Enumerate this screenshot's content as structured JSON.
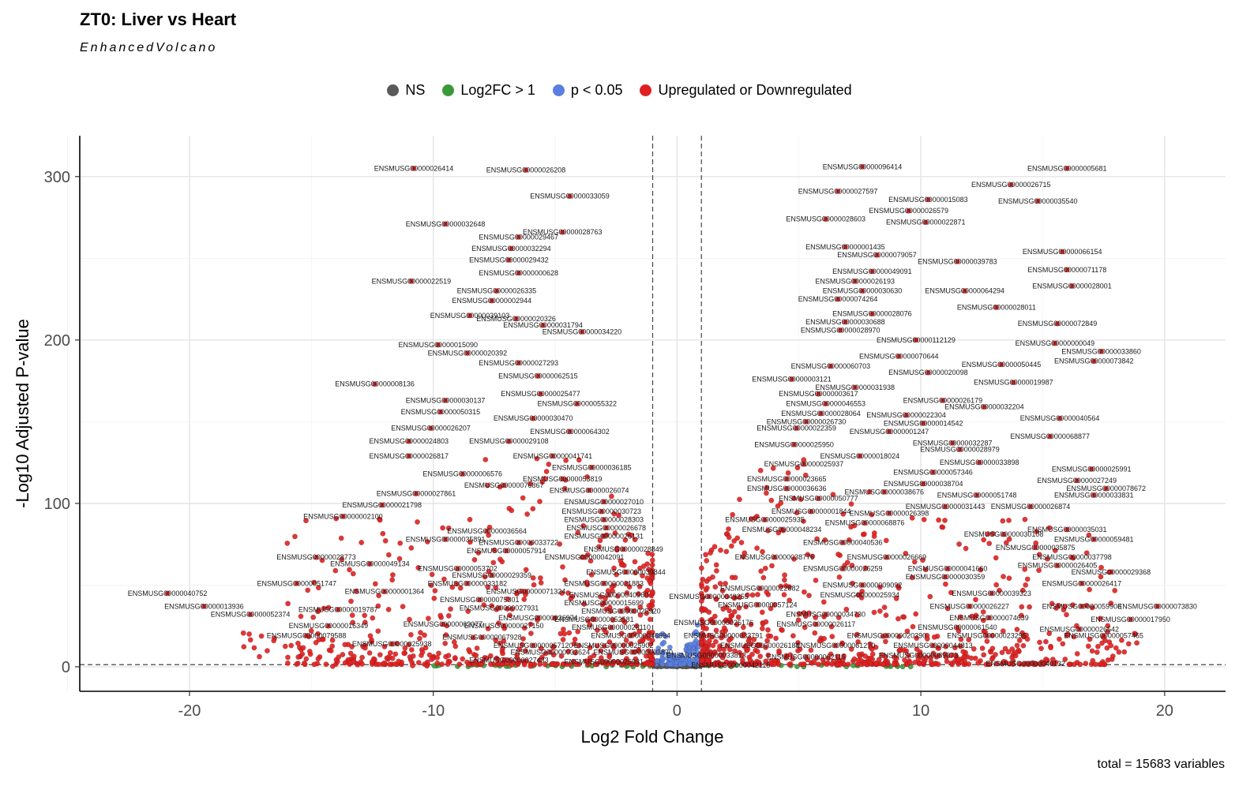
{
  "chart_data": {
    "type": "scatter",
    "title": "ZT0: Liver vs Heart",
    "subtitle": "EnhancedVolcano",
    "caption": "total = 15683 variables",
    "xlabel": "Log2 Fold Change",
    "ylabel": "-Log10 Adjusted P-value",
    "xlim": [
      -24.5,
      22.5
    ],
    "ylim": [
      -15,
      325
    ],
    "xticks": [
      -20,
      -10,
      0,
      10,
      20
    ],
    "yticks": [
      0,
      100,
      200,
      300
    ],
    "grid": true,
    "legend_position": "top",
    "cutoffs": {
      "log2fc": 1,
      "neg_log10_p": 1.3
    },
    "legend": [
      {
        "label": "NS",
        "color": "#5a5a5a"
      },
      {
        "label": "Log2FC > 1",
        "color": "#3a9a3a"
      },
      {
        "label": "p < 0.05",
        "color": "#5b7fe0"
      },
      {
        "label": "Upregulated or Downregulated",
        "color": "#e02020"
      }
    ],
    "labeled_points": [
      {
        "id": "ENSMUSG00000026414",
        "x": -10.8,
        "y": 305
      },
      {
        "id": "ENSMUSG00000026208",
        "x": -6.2,
        "y": 304
      },
      {
        "id": "ENSMUSG00000033059",
        "x": -4.4,
        "y": 288
      },
      {
        "id": "ENSMUSG00000032648",
        "x": -9.5,
        "y": 271
      },
      {
        "id": "ENSMUSG00000028763",
        "x": -4.7,
        "y": 266
      },
      {
        "id": "ENSMUSG00000029467",
        "x": -6.5,
        "y": 263
      },
      {
        "id": "ENSMUSG00000032294",
        "x": -6.8,
        "y": 256
      },
      {
        "id": "ENSMUSG00000029432",
        "x": -6.9,
        "y": 249
      },
      {
        "id": "ENSMUSG00000000628",
        "x": -6.5,
        "y": 241
      },
      {
        "id": "ENSMUSG00000022519",
        "x": -10.9,
        "y": 236
      },
      {
        "id": "ENSMUSG00000026335",
        "x": -7.4,
        "y": 230
      },
      {
        "id": "ENSMUSG00000002944",
        "x": -7.6,
        "y": 224
      },
      {
        "id": "ENSMUSG00000039103",
        "x": -8.5,
        "y": 215
      },
      {
        "id": "ENSMUSG00000020326",
        "x": -6.6,
        "y": 213
      },
      {
        "id": "ENSMUSG00000031794",
        "x": -5.5,
        "y": 209
      },
      {
        "id": "ENSMUSG00000034220",
        "x": -3.9,
        "y": 205
      },
      {
        "id": "ENSMUSG00000015090",
        "x": -9.8,
        "y": 197
      },
      {
        "id": "ENSMUSG00000020392",
        "x": -8.6,
        "y": 192
      },
      {
        "id": "ENSMUSG00000027293",
        "x": -6.5,
        "y": 186
      },
      {
        "id": "ENSMUSG00000062515",
        "x": -5.7,
        "y": 178
      },
      {
        "id": "ENSMUSG00000008136",
        "x": -12.4,
        "y": 173
      },
      {
        "id": "ENSMUSG00000025477",
        "x": -5.6,
        "y": 167
      },
      {
        "id": "ENSMUSG00000030137",
        "x": -9.5,
        "y": 163
      },
      {
        "id": "ENSMUSG00000055322",
        "x": -4.1,
        "y": 161
      },
      {
        "id": "ENSMUSG00000050315",
        "x": -9.7,
        "y": 156
      },
      {
        "id": "ENSMUSG00000030470",
        "x": -5.9,
        "y": 152
      },
      {
        "id": "ENSMUSG00000026207",
        "x": -10.1,
        "y": 146
      },
      {
        "id": "ENSMUSG00000064302",
        "x": -4.4,
        "y": 144
      },
      {
        "id": "ENSMUSG00000024803",
        "x": -11.0,
        "y": 138
      },
      {
        "id": "ENSMUSG00000029108",
        "x": -6.9,
        "y": 138
      },
      {
        "id": "ENSMUSG00000026817",
        "x": -11.0,
        "y": 129
      },
      {
        "id": "ENSMUSG00000041741",
        "x": -5.1,
        "y": 129
      },
      {
        "id": "ENSMUSG00000036185",
        "x": -3.5,
        "y": 122
      },
      {
        "id": "ENSMUSG00000006576",
        "x": -8.8,
        "y": 118
      },
      {
        "id": "ENSMUSG00000053819",
        "x": -4.7,
        "y": 115
      },
      {
        "id": "ENSMUSG00000076867",
        "x": -7.1,
        "y": 111
      },
      {
        "id": "ENSMUSG00000026074",
        "x": -3.6,
        "y": 108
      },
      {
        "id": "ENSMUSG00000027861",
        "x": -10.7,
        "y": 106
      },
      {
        "id": "ENSMUSG00000027010",
        "x": -3.0,
        "y": 101
      },
      {
        "id": "ENSMUSG00000021798",
        "x": -12.1,
        "y": 99
      },
      {
        "id": "ENSMUSG00000030723",
        "x": -3.1,
        "y": 95
      },
      {
        "id": "ENSMUSG00000028303",
        "x": -3.0,
        "y": 90
      },
      {
        "id": "ENSMUSG00000002100",
        "x": -13.7,
        "y": 92
      },
      {
        "id": "ENSMUSG00000036564",
        "x": -7.8,
        "y": 83
      },
      {
        "id": "ENSMUSG00000026678",
        "x": -2.9,
        "y": 85
      },
      {
        "id": "ENSMUSG00000026131",
        "x": -3.0,
        "y": 80
      },
      {
        "id": "ENSMUSG00000035891",
        "x": -9.5,
        "y": 78
      },
      {
        "id": "ENSMUSG00000033722",
        "x": -6.5,
        "y": 76
      },
      {
        "id": "ENSMUSG00000028849",
        "x": -2.2,
        "y": 72
      },
      {
        "id": "ENSMUSG00000057914",
        "x": -7.0,
        "y": 71
      },
      {
        "id": "ENSMUSG00000028773",
        "x": -14.8,
        "y": 67
      },
      {
        "id": "ENSMUSG00000042091",
        "x": -3.8,
        "y": 67
      },
      {
        "id": "ENSMUSG00000049134",
        "x": -12.6,
        "y": 63
      },
      {
        "id": "ENSMUSG00000053702",
        "x": -9.0,
        "y": 60
      },
      {
        "id": "ENSMUSG00000039844",
        "x": -2.1,
        "y": 58
      },
      {
        "id": "ENSMUSG00000029359",
        "x": -7.6,
        "y": 56
      },
      {
        "id": "ENSMUSG00000051747",
        "x": -15.6,
        "y": 51
      },
      {
        "id": "ENSMUSG00000033182",
        "x": -8.6,
        "y": 51
      },
      {
        "id": "ENSMUSG00000021883",
        "x": -3.0,
        "y": 51
      },
      {
        "id": "ENSMUSG00000001364",
        "x": -12.0,
        "y": 46
      },
      {
        "id": "ENSMUSG00000071324",
        "x": -6.2,
        "y": 46
      },
      {
        "id": "ENSMUSG00000040960",
        "x": -2.8,
        "y": 44
      },
      {
        "id": "ENSMUSG00000040752",
        "x": -20.9,
        "y": 45
      },
      {
        "id": "ENSMUSG00000075301",
        "x": -8.1,
        "y": 41
      },
      {
        "id": "ENSMUSG00000015699",
        "x": -3.0,
        "y": 39
      },
      {
        "id": "ENSMUSG00000013936",
        "x": -19.4,
        "y": 37
      },
      {
        "id": "ENSMUSG00000027931",
        "x": -7.3,
        "y": 36
      },
      {
        "id": "ENSMUSG00000025920",
        "x": -2.3,
        "y": 34
      },
      {
        "id": "ENSMUSG00000019787",
        "x": -13.9,
        "y": 35
      },
      {
        "id": "ENSMUSG00000052374",
        "x": -17.5,
        "y": 32
      },
      {
        "id": "ENSMUSG00000026974",
        "x": -5.7,
        "y": 30
      },
      {
        "id": "ENSMUSG00000052581",
        "x": -3.4,
        "y": 29
      },
      {
        "id": "ENSMUSG00000062077",
        "x": -9.6,
        "y": 26
      },
      {
        "id": "ENSMUSG00000016349",
        "x": -14.3,
        "y": 25
      },
      {
        "id": "ENSMUSG00000027150",
        "x": -7.1,
        "y": 25
      },
      {
        "id": "ENSMUSG00000026110",
        "x": -2.7,
        "y": 24
      },
      {
        "id": "ENSMUSG00000079588",
        "x": -15.2,
        "y": 19
      },
      {
        "id": "ENSMUSG00000067928",
        "x": -8.0,
        "y": 18
      },
      {
        "id": "ENSMUSG00000046994",
        "x": -1.9,
        "y": 19
      },
      {
        "id": "ENSMUSG00000025938",
        "x": -11.7,
        "y": 14
      },
      {
        "id": "ENSMUSG00000057120",
        "x": -5.9,
        "y": 13
      },
      {
        "id": "ENSMUSG00000025902",
        "x": -2.6,
        "y": 13
      },
      {
        "id": "ENSMUSG00000032624",
        "x": -5.2,
        "y": 9
      },
      {
        "id": "ENSMUSG00000003870",
        "x": -1.8,
        "y": 9
      },
      {
        "id": "ENSMUSG00000027433",
        "x": -6.9,
        "y": 4
      },
      {
        "id": "ENSMUSG00000025931",
        "x": -3.0,
        "y": 3
      },
      {
        "id": "ENSMUSG00000096414",
        "x": 7.6,
        "y": 306
      },
      {
        "id": "ENSMUSG00000005681",
        "x": 16.0,
        "y": 305
      },
      {
        "id": "ENSMUSG00000026715",
        "x": 13.7,
        "y": 295
      },
      {
        "id": "ENSMUSG00000027597",
        "x": 6.6,
        "y": 291
      },
      {
        "id": "ENSMUSG00000015083",
        "x": 10.3,
        "y": 286
      },
      {
        "id": "ENSMUSG00000035540",
        "x": 14.8,
        "y": 285
      },
      {
        "id": "ENSMUSG00000026579",
        "x": 9.5,
        "y": 279
      },
      {
        "id": "ENSMUSG00000028603",
        "x": 6.1,
        "y": 274
      },
      {
        "id": "ENSMUSG00000022871",
        "x": 10.2,
        "y": 272
      },
      {
        "id": "ENSMUSG00000001435",
        "x": 6.9,
        "y": 257
      },
      {
        "id": "ENSMUSG00000079057",
        "x": 8.2,
        "y": 252
      },
      {
        "id": "ENSMUSG00000066154",
        "x": 15.8,
        "y": 254
      },
      {
        "id": "ENSMUSG00000039783",
        "x": 11.5,
        "y": 248
      },
      {
        "id": "ENSMUSG00000071178",
        "x": 16.0,
        "y": 243
      },
      {
        "id": "ENSMUSG00000049091",
        "x": 8.0,
        "y": 242
      },
      {
        "id": "ENSMUSG00000026193",
        "x": 7.3,
        "y": 236
      },
      {
        "id": "ENSMUSG00000028001",
        "x": 16.2,
        "y": 233
      },
      {
        "id": "ENSMUSG00000030630",
        "x": 7.6,
        "y": 230
      },
      {
        "id": "ENSMUSG00000064294",
        "x": 11.8,
        "y": 230
      },
      {
        "id": "ENSMUSG00000074264",
        "x": 6.6,
        "y": 225
      },
      {
        "id": "ENSMUSG00000028011",
        "x": 13.1,
        "y": 220
      },
      {
        "id": "ENSMUSG00000028076",
        "x": 8.0,
        "y": 216
      },
      {
        "id": "ENSMUSG00000030688",
        "x": 6.9,
        "y": 211
      },
      {
        "id": "ENSMUSG00000072849",
        "x": 15.6,
        "y": 210
      },
      {
        "id": "ENSMUSG00000028970",
        "x": 6.7,
        "y": 206
      },
      {
        "id": "ENSMUSG00000112129",
        "x": 9.8,
        "y": 200
      },
      {
        "id": "ENSMUSG00000000049",
        "x": 15.5,
        "y": 198
      },
      {
        "id": "ENSMUSG00000033860",
        "x": 17.4,
        "y": 193
      },
      {
        "id": "ENSMUSG00000070644",
        "x": 9.1,
        "y": 190
      },
      {
        "id": "ENSMUSG00000073842",
        "x": 17.1,
        "y": 187
      },
      {
        "id": "ENSMUSG00000050445",
        "x": 13.3,
        "y": 185
      },
      {
        "id": "ENSMUSG00000060703",
        "x": 6.3,
        "y": 184
      },
      {
        "id": "ENSMUSG00000020098",
        "x": 10.3,
        "y": 180
      },
      {
        "id": "ENSMUSG00000003121",
        "x": 4.7,
        "y": 176
      },
      {
        "id": "ENSMUSG00000019987",
        "x": 13.8,
        "y": 174
      },
      {
        "id": "ENSMUSG00000031938",
        "x": 7.3,
        "y": 171
      },
      {
        "id": "ENSMUSG00000003617",
        "x": 5.8,
        "y": 167
      },
      {
        "id": "ENSMUSG00000026179",
        "x": 10.9,
        "y": 163
      },
      {
        "id": "ENSMUSG00000046553",
        "x": 6.1,
        "y": 161
      },
      {
        "id": "ENSMUSG00000032204",
        "x": 12.6,
        "y": 159
      },
      {
        "id": "ENSMUSG00000028064",
        "x": 5.9,
        "y": 155
      },
      {
        "id": "ENSMUSG00000022304",
        "x": 9.4,
        "y": 154
      },
      {
        "id": "ENSMUSG00000040564",
        "x": 15.7,
        "y": 152
      },
      {
        "id": "ENSMUSG00000026730",
        "x": 5.3,
        "y": 150
      },
      {
        "id": "ENSMUSG00000014542",
        "x": 10.1,
        "y": 149
      },
      {
        "id": "ENSMUSG00000022359",
        "x": 4.9,
        "y": 146
      },
      {
        "id": "ENSMUSG00000001247",
        "x": 8.7,
        "y": 144
      },
      {
        "id": "ENSMUSG00000068877",
        "x": 15.3,
        "y": 141
      },
      {
        "id": "ENSMUSG00000032287",
        "x": 11.3,
        "y": 137
      },
      {
        "id": "ENSMUSG00000025950",
        "x": 4.8,
        "y": 136
      },
      {
        "id": "ENSMUSG00000028979",
        "x": 11.6,
        "y": 133
      },
      {
        "id": "ENSMUSG00000018024",
        "x": 7.5,
        "y": 129
      },
      {
        "id": "ENSMUSG00000033898",
        "x": 12.4,
        "y": 125
      },
      {
        "id": "ENSMUSG00000025937",
        "x": 5.2,
        "y": 124
      },
      {
        "id": "ENSMUSG00000025991",
        "x": 17.0,
        "y": 121
      },
      {
        "id": "ENSMUSG00000057346",
        "x": 10.5,
        "y": 119
      },
      {
        "id": "ENSMUSG00000023665",
        "x": 4.5,
        "y": 115
      },
      {
        "id": "ENSMUSG00000027249",
        "x": 16.4,
        "y": 114
      },
      {
        "id": "ENSMUSG00000038704",
        "x": 10.1,
        "y": 112
      },
      {
        "id": "ENSMUSG00000078672",
        "x": 17.6,
        "y": 109
      },
      {
        "id": "ENSMUSG00000036636",
        "x": 4.5,
        "y": 109
      },
      {
        "id": "ENSMUSG00000038676",
        "x": 8.5,
        "y": 107
      },
      {
        "id": "ENSMUSG00000051748",
        "x": 12.3,
        "y": 105
      },
      {
        "id": "ENSMUSG00000033831",
        "x": 17.1,
        "y": 105
      },
      {
        "id": "ENSMUSG00000050777",
        "x": 5.8,
        "y": 103
      },
      {
        "id": "ENSMUSG00000031443",
        "x": 11.0,
        "y": 98
      },
      {
        "id": "ENSMUSG00000026874",
        "x": 14.5,
        "y": 98
      },
      {
        "id": "ENSMUSG00000001844",
        "x": 5.5,
        "y": 95
      },
      {
        "id": "ENSMUSG00000026398",
        "x": 8.7,
        "y": 94
      },
      {
        "id": "ENSMUSG00000025935",
        "x": 3.6,
        "y": 90
      },
      {
        "id": "ENSMUSG00000068876",
        "x": 7.7,
        "y": 88
      },
      {
        "id": "ENSMUSG00000035031",
        "x": 16.0,
        "y": 84
      },
      {
        "id": "ENSMUSG00000048234",
        "x": 4.3,
        "y": 84
      },
      {
        "id": "ENSMUSG00000030108",
        "x": 13.4,
        "y": 81
      },
      {
        "id": "ENSMUSG00000059481",
        "x": 17.1,
        "y": 78
      },
      {
        "id": "ENSMUSG00000040536",
        "x": 6.8,
        "y": 76
      },
      {
        "id": "ENSMUSG00000035875",
        "x": 14.7,
        "y": 73
      },
      {
        "id": "ENSMUSG00000038776",
        "x": 4.0,
        "y": 67
      },
      {
        "id": "ENSMUSG00000026669",
        "x": 8.6,
        "y": 67
      },
      {
        "id": "ENSMUSG00000037798",
        "x": 16.2,
        "y": 67
      },
      {
        "id": "ENSMUSG00000026405",
        "x": 15.6,
        "y": 62
      },
      {
        "id": "ENSMUSG00000026259",
        "x": 6.8,
        "y": 60
      },
      {
        "id": "ENSMUSG00000041660",
        "x": 11.1,
        "y": 60
      },
      {
        "id": "ENSMUSG00000029368",
        "x": 17.8,
        "y": 58
      },
      {
        "id": "ENSMUSG00000030359",
        "x": 11.0,
        "y": 55
      },
      {
        "id": "ENSMUSG00000026417",
        "x": 16.6,
        "y": 51
      },
      {
        "id": "ENSMUSG00000009092",
        "x": 7.6,
        "y": 50
      },
      {
        "id": "ENSMUSG00000022882",
        "x": 3.4,
        "y": 48
      },
      {
        "id": "ENSMUSG00000039323",
        "x": 12.9,
        "y": 45
      },
      {
        "id": "ENSMUSG00000025934",
        "x": 7.5,
        "y": 44
      },
      {
        "id": "ENSMUSG00000049255",
        "x": 1.3,
        "y": 43
      },
      {
        "id": "ENSMUSG00000057124",
        "x": 3.3,
        "y": 38
      },
      {
        "id": "ENSMUSG00000026227",
        "x": 12.0,
        "y": 37
      },
      {
        "id": "ENSMUSG00000059908",
        "x": 16.6,
        "y": 37
      },
      {
        "id": "ENSMUSG00000073830",
        "x": 19.7,
        "y": 37
      },
      {
        "id": "ENSMUSG00000034730",
        "x": 6.1,
        "y": 32
      },
      {
        "id": "ENSMUSG00000074639",
        "x": 12.8,
        "y": 30
      },
      {
        "id": "ENSMUSG00000017950",
        "x": 18.6,
        "y": 29
      },
      {
        "id": "ENSMUSG00000025176",
        "x": 1.5,
        "y": 27
      },
      {
        "id": "ENSMUSG00000026117",
        "x": 5.7,
        "y": 26
      },
      {
        "id": "ENSMUSG00000061540",
        "x": 11.5,
        "y": 24
      },
      {
        "id": "ENSMUSG00000026542",
        "x": 16.5,
        "y": 23
      },
      {
        "id": "ENSMUSG00000033791",
        "x": 1.9,
        "y": 19
      },
      {
        "id": "ENSMUSG00000020390",
        "x": 8.6,
        "y": 19
      },
      {
        "id": "ENSMUSG00000023295",
        "x": 12.7,
        "y": 19
      },
      {
        "id": "ENSMUSG00000057465",
        "x": 17.5,
        "y": 19
      },
      {
        "id": "ENSMUSG00000026184",
        "x": 3.4,
        "y": 13
      },
      {
        "id": "ENSMUSG00000061270",
        "x": 6.5,
        "y": 13
      },
      {
        "id": "ENSMUSG00000044813",
        "x": 10.5,
        "y": 13
      },
      {
        "id": "ENSMUSG00000033813",
        "x": 1.2,
        "y": 7
      },
      {
        "id": "ENSMUSG00000089873",
        "x": 9.9,
        "y": 7
      },
      {
        "id": "ENSMUSG00000062115",
        "x": 5.3,
        "y": 6
      },
      {
        "id": "ENSMUSG00000040132",
        "x": 14.3,
        "y": 2
      },
      {
        "id": "ENSMUSG00000042115",
        "x": 2.2,
        "y": 1
      }
    ]
  }
}
